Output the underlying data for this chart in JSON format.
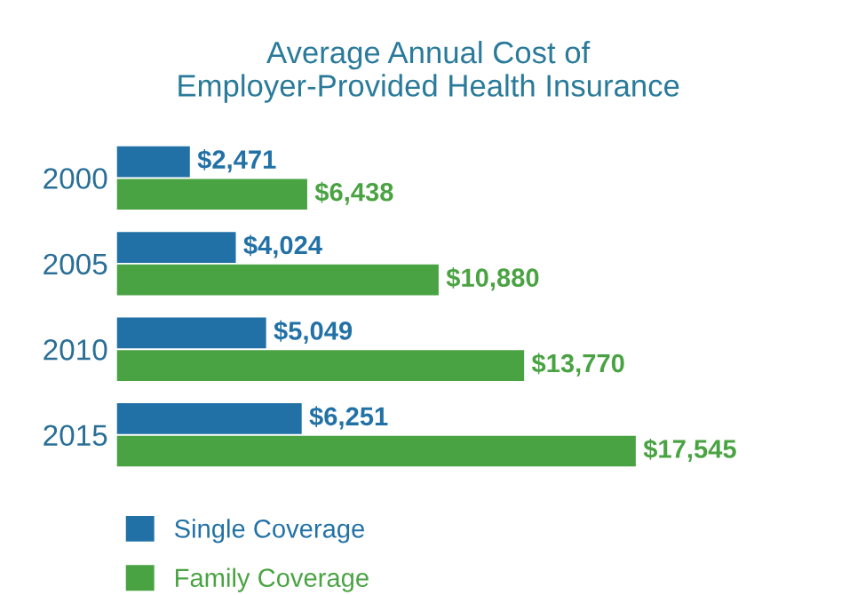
{
  "chart_data": {
    "type": "bar",
    "orientation": "horizontal",
    "title": "Average Annual Cost of\nEmployer-Provided Health Insurance",
    "categories": [
      "2000",
      "2005",
      "2010",
      "2015"
    ],
    "series": [
      {
        "name": "Single Coverage",
        "color": "#2271a6",
        "values": [
          2471,
          4024,
          5049,
          6251
        ],
        "value_labels": [
          "$2,471",
          "$4,024",
          "$5,049",
          "$6,251"
        ]
      },
      {
        "name": "Family Coverage",
        "color": "#4aa343",
        "values": [
          6438,
          10880,
          13770,
          17545
        ],
        "value_labels": [
          "$6,438",
          "$10,880",
          "$13,770",
          "$17,545"
        ]
      }
    ],
    "legend": "bottom left",
    "grid": false
  }
}
